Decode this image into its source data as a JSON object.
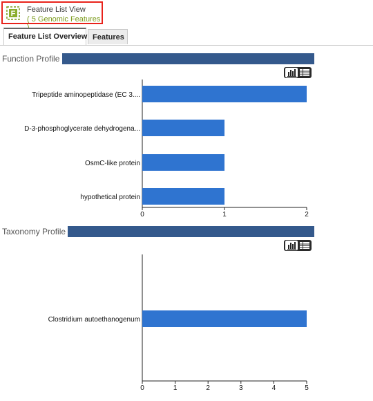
{
  "header": {
    "title": "Feature List View",
    "subtitle": "( 5 Genomic Features )",
    "icon": "feature-list-icon",
    "icon_letter": "F",
    "accent_color": "#7a9a1a",
    "highlight_color": "#e8221b"
  },
  "tabs": [
    {
      "label": "Feature List Overview",
      "active": true
    },
    {
      "label": "Features",
      "active": false
    }
  ],
  "function_profile": {
    "title": "Function Profile",
    "toggle": {
      "bar_chart_icon": "bar-chart-icon",
      "table_icon": "table-icon",
      "selected": "bar-chart"
    }
  },
  "taxonomy_profile": {
    "title": "Taxonomy Profile",
    "toggle": {
      "bar_chart_icon": "bar-chart-icon",
      "table_icon": "table-icon",
      "selected": "bar-chart"
    }
  },
  "colors": {
    "bar": "#2f74d0",
    "section_bar": "#34598c"
  },
  "chart_data": [
    {
      "type": "bar",
      "orientation": "horizontal",
      "categories": [
        "Tripeptide aminopeptidase (EC 3....",
        "D-3-phosphoglycerate dehydrogena...",
        "OsmC-like protein",
        "hypothetical protein"
      ],
      "values": [
        2,
        1,
        1,
        1
      ],
      "xlim": [
        0,
        2
      ],
      "xticks": [
        "0",
        "1",
        "2"
      ],
      "grid": false
    },
    {
      "type": "bar",
      "orientation": "horizontal",
      "categories": [
        "Clostridium autoethanogenum"
      ],
      "values": [
        5
      ],
      "xlim": [
        0,
        5
      ],
      "xticks": [
        "0",
        "1",
        "2",
        "3",
        "4",
        "5"
      ],
      "grid": false
    }
  ]
}
